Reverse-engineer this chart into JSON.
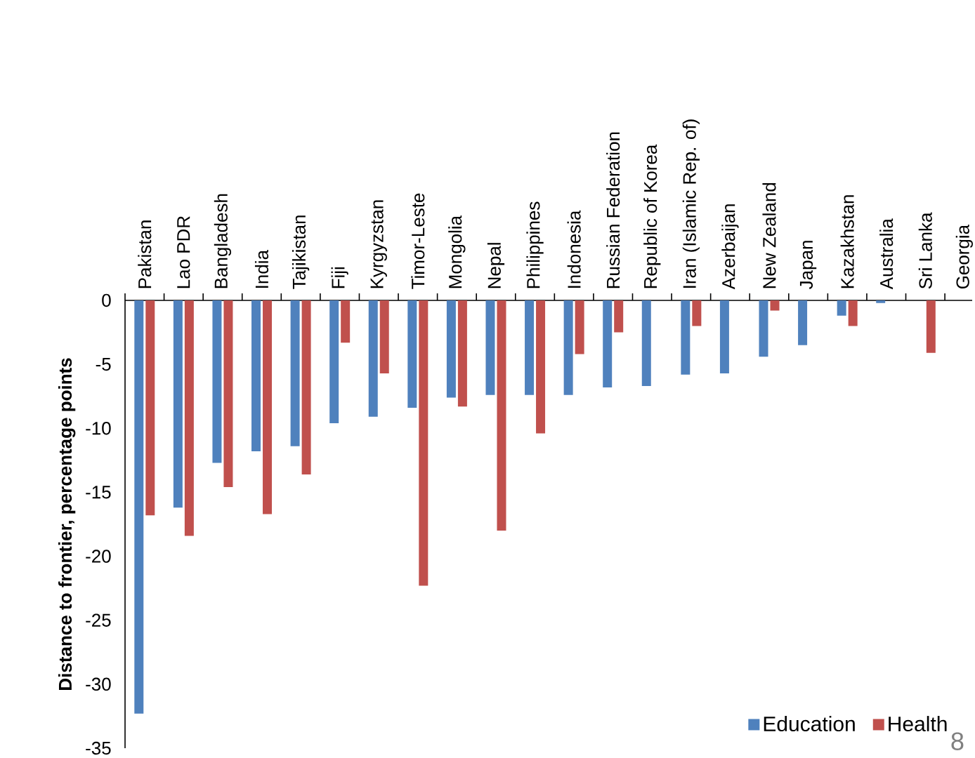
{
  "chart_data": {
    "type": "bar",
    "ylabel": "Distance to frontier, percentage points",
    "categories": [
      "Pakistan",
      "Lao PDR",
      "Bangladesh",
      "India",
      "Tajikistan",
      "Fiji",
      "Kyrgyzstan",
      "Timor-Leste",
      "Mongolia",
      "Nepal",
      "Philippines",
      "Indonesia",
      "Russian Federation",
      "Republic of Korea",
      "Iran (Islamic Rep. of)",
      "Azerbaijan",
      "New Zealand",
      "Japan",
      "Kazakhstan",
      "Australia",
      "Sri Lanka",
      "Georgia"
    ],
    "series": [
      {
        "name": "Education",
        "color": "#4f81bd",
        "values": [
          -32.3,
          -16.2,
          -12.7,
          -11.8,
          -11.4,
          -9.6,
          -9.1,
          -8.4,
          -7.6,
          -7.4,
          -7.4,
          -7.4,
          -6.8,
          -6.7,
          -5.8,
          -5.7,
          -4.4,
          -3.5,
          -1.2,
          -0.2,
          null,
          null
        ]
      },
      {
        "name": "Health",
        "color": "#c0504d",
        "values": [
          -16.8,
          -18.4,
          -14.6,
          -16.7,
          -13.6,
          -3.3,
          -5.7,
          -22.3,
          -8.3,
          -18.0,
          -10.4,
          -4.2,
          -2.5,
          null,
          -2.0,
          null,
          -0.8,
          null,
          -2.0,
          null,
          -4.1,
          null
        ]
      }
    ],
    "ylim": [
      -35,
      0
    ],
    "yticks": [
      -35,
      -30,
      -25,
      -20,
      -15,
      -10,
      -5,
      0
    ],
    "legend": "bottom right",
    "annotations": [
      "8"
    ]
  }
}
